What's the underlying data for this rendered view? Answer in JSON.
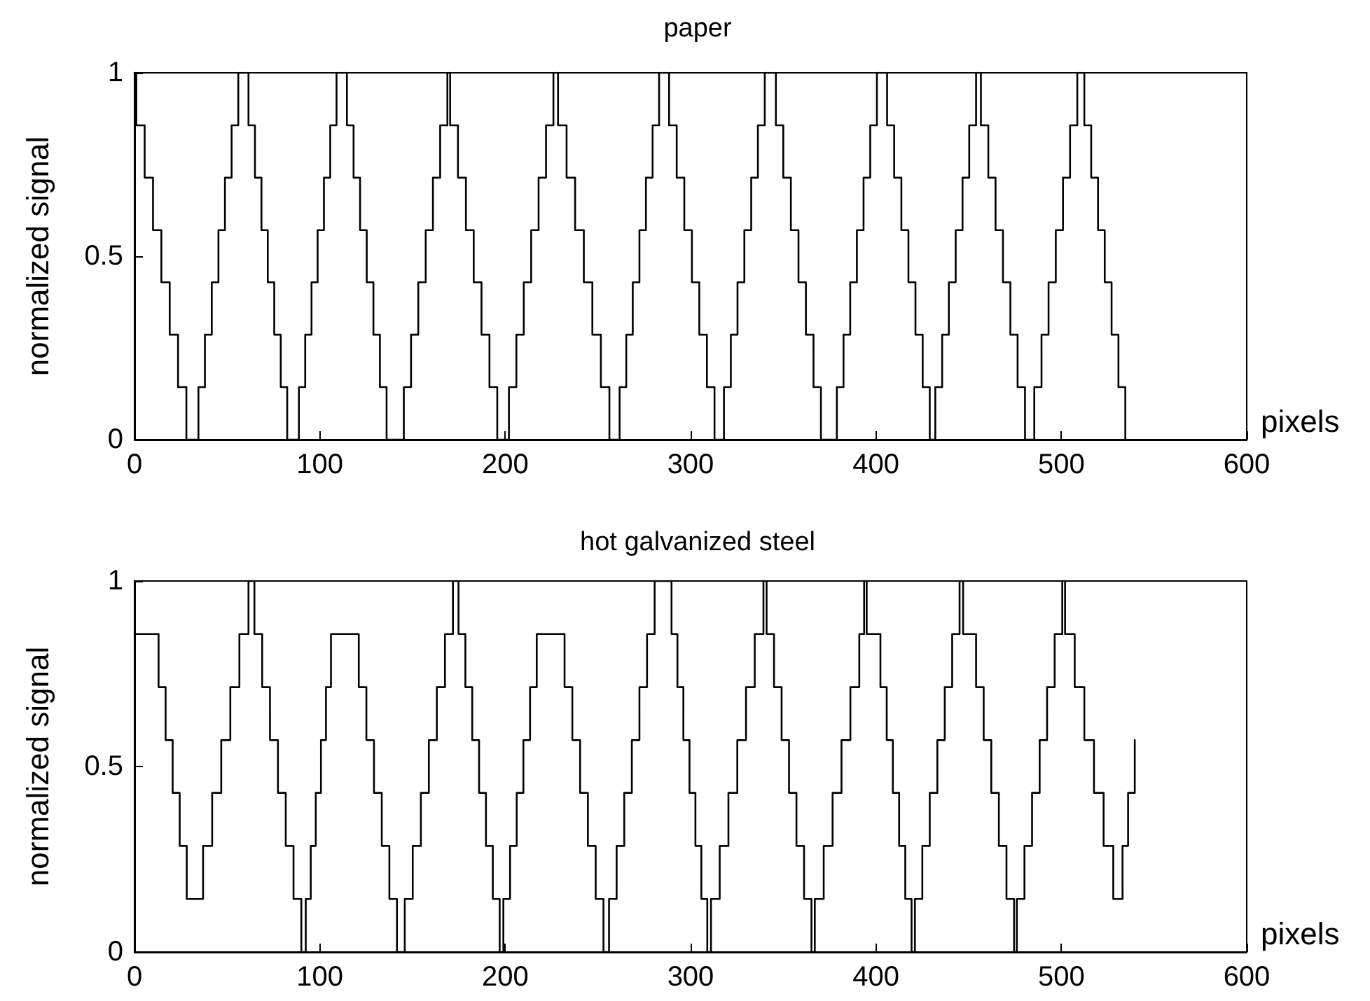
{
  "chart_data": [
    {
      "type": "step",
      "title": "paper",
      "xlabel": "pixels",
      "ylabel": "normalized signal",
      "color": "#000000",
      "marker": "none",
      "line_style": "solid",
      "grid": false,
      "xlim": [
        0,
        600
      ],
      "xticks": [
        0,
        100,
        200,
        300,
        400,
        500,
        600
      ],
      "ylim": [
        0,
        1
      ],
      "yticks": [
        0,
        0.5,
        1
      ],
      "x": [
        0,
        1,
        5.5,
        10,
        14.5,
        19,
        23.5,
        28,
        34.5,
        38,
        41.7,
        45.3,
        48.8,
        52.4,
        56,
        61.5,
        65,
        68.5,
        71.9,
        75.4,
        78.9,
        82.4,
        88.7,
        92.1,
        95.5,
        98.8,
        102.2,
        105.6,
        109,
        114.6,
        118.2,
        121.7,
        125.3,
        128.9,
        132.4,
        136,
        145.3,
        149.2,
        153.1,
        157.1,
        161,
        164.9,
        168.8,
        170.3,
        174.5,
        178.8,
        183,
        187.2,
        191.5,
        195.7,
        202,
        206,
        210,
        214,
        218,
        222,
        226,
        228.5,
        233.1,
        237.7,
        242.4,
        247,
        251.6,
        256.2,
        261.7,
        265.3,
        268.8,
        272.4,
        275.9,
        279.5,
        283,
        288.4,
        292.5,
        296.6,
        300.7,
        304.7,
        308.8,
        312.9,
        318,
        321.7,
        325.3,
        329,
        332.7,
        336.3,
        340,
        346,
        350,
        354.1,
        358.2,
        362.2,
        366.3,
        370.3,
        378.9,
        382.5,
        386.1,
        389.7,
        393.3,
        396.9,
        400.5,
        406,
        409.8,
        413.7,
        417.5,
        421.3,
        425.2,
        429,
        432,
        435.7,
        439.3,
        443,
        446.7,
        450.3,
        454,
        456.6,
        460.6,
        464.5,
        468.5,
        472.5,
        476.4,
        480.4,
        485.4,
        489.3,
        493.1,
        497,
        500.9,
        504.7,
        508.6,
        512.4,
        516.1,
        519.8,
        523.4,
        527.1,
        530.8,
        534.5
      ],
      "values": [
        1,
        0.857,
        0.714,
        0.571,
        0.429,
        0.286,
        0.143,
        0,
        0.143,
        0.286,
        0.429,
        0.571,
        0.714,
        0.857,
        1,
        0.857,
        0.714,
        0.571,
        0.429,
        0.286,
        0.143,
        0,
        0.143,
        0.286,
        0.429,
        0.571,
        0.714,
        0.857,
        1,
        0.857,
        0.714,
        0.571,
        0.429,
        0.286,
        0.143,
        0,
        0.143,
        0.286,
        0.429,
        0.571,
        0.714,
        0.857,
        1,
        0.857,
        0.714,
        0.571,
        0.429,
        0.286,
        0.143,
        0,
        0.143,
        0.286,
        0.429,
        0.571,
        0.714,
        0.857,
        1,
        0.857,
        0.714,
        0.571,
        0.429,
        0.286,
        0.143,
        0,
        0.143,
        0.286,
        0.429,
        0.571,
        0.714,
        0.857,
        1,
        0.857,
        0.714,
        0.571,
        0.429,
        0.286,
        0.143,
        0,
        0.143,
        0.286,
        0.429,
        0.571,
        0.714,
        0.857,
        1,
        0.857,
        0.714,
        0.571,
        0.429,
        0.286,
        0.143,
        0,
        0.143,
        0.286,
        0.429,
        0.571,
        0.714,
        0.857,
        1,
        0.857,
        0.714,
        0.571,
        0.429,
        0.286,
        0.143,
        0,
        0.143,
        0.286,
        0.429,
        0.571,
        0.714,
        0.857,
        1,
        0.857,
        0.714,
        0.571,
        0.429,
        0.286,
        0.143,
        0,
        0.143,
        0.286,
        0.429,
        0.571,
        0.714,
        0.857,
        1,
        0.857,
        0.714,
        0.571,
        0.429,
        0.286,
        0.143,
        0
      ]
    },
    {
      "type": "step",
      "title": "hot galvanized steel",
      "xlabel": "pixels",
      "ylabel": "normalized signal",
      "color": "#000000",
      "marker": "none",
      "line_style": "solid",
      "grid": false,
      "xlim": [
        0,
        600
      ],
      "xticks": [
        0,
        100,
        200,
        300,
        400,
        500,
        600
      ],
      "ylim": [
        0,
        1
      ],
      "yticks": [
        0,
        0.5,
        1
      ],
      "x": [
        0,
        13,
        16.8,
        20.6,
        24.4,
        28.2,
        37,
        41.9,
        46.8,
        51.7,
        56.6,
        61.5,
        64.7,
        68.9,
        73.1,
        77.4,
        81.6,
        85.8,
        90,
        92.4,
        95.1,
        97.8,
        100.6,
        103.3,
        106,
        121,
        125.1,
        129.2,
        133.4,
        137.5,
        141.6,
        145.8,
        150.1,
        154.5,
        158.8,
        163.1,
        167.5,
        171.8,
        174.8,
        178.5,
        182.2,
        185.9,
        189.6,
        193.3,
        197,
        199,
        202.6,
        206.2,
        209.8,
        213.4,
        217,
        232,
        236.2,
        240.4,
        244.6,
        248.8,
        253,
        256,
        260.1,
        264.2,
        268.3,
        272.4,
        276.5,
        280.6,
        289.7,
        292.9,
        296.1,
        299.4,
        302.6,
        305.8,
        309,
        311,
        315.7,
        320.4,
        325.2,
        329.9,
        334.6,
        339.3,
        341,
        345,
        349.1,
        353.1,
        357.1,
        361.2,
        365.2,
        367,
        371.8,
        376.6,
        381.4,
        386.2,
        391,
        393.6,
        395,
        402.4,
        405.8,
        409.1,
        412.5,
        415.8,
        419.2,
        421,
        425,
        429,
        433.1,
        437.1,
        441.1,
        445.1,
        447,
        454,
        458.1,
        462.2,
        466.3,
        470.4,
        474.5,
        476,
        480.1,
        484.2,
        488.3,
        492.3,
        496.4,
        500.5,
        502,
        507.2,
        512.4,
        517.6,
        522.8,
        528,
        533,
        536,
        539.6
      ],
      "values": [
        0.857,
        0.714,
        0.571,
        0.429,
        0.286,
        0.143,
        0.286,
        0.429,
        0.571,
        0.714,
        0.857,
        1,
        0.857,
        0.714,
        0.571,
        0.429,
        0.286,
        0.143,
        0,
        0.143,
        0.286,
        0.429,
        0.571,
        0.714,
        0.857,
        0.714,
        0.571,
        0.429,
        0.286,
        0.143,
        0,
        0.143,
        0.286,
        0.429,
        0.571,
        0.714,
        0.857,
        1,
        0.857,
        0.714,
        0.571,
        0.429,
        0.286,
        0.143,
        0,
        0.143,
        0.286,
        0.429,
        0.571,
        0.714,
        0.857,
        0.714,
        0.571,
        0.429,
        0.286,
        0.143,
        0,
        0.143,
        0.286,
        0.429,
        0.571,
        0.714,
        0.857,
        1,
        0.857,
        0.714,
        0.571,
        0.429,
        0.286,
        0.143,
        0,
        0.143,
        0.286,
        0.429,
        0.571,
        0.714,
        0.857,
        1,
        0.857,
        0.714,
        0.571,
        0.429,
        0.286,
        0.143,
        0,
        0.143,
        0.286,
        0.429,
        0.571,
        0.714,
        0.857,
        1,
        0.857,
        0.714,
        0.571,
        0.429,
        0.286,
        0.143,
        0,
        0.143,
        0.286,
        0.429,
        0.571,
        0.714,
        0.857,
        1,
        0.857,
        0.714,
        0.571,
        0.429,
        0.286,
        0.143,
        0,
        0.143,
        0.286,
        0.429,
        0.571,
        0.714,
        0.857,
        1,
        0.857,
        0.714,
        0.571,
        0.429,
        0.286,
        0.143,
        0.286,
        0.429,
        0.571
      ]
    }
  ]
}
